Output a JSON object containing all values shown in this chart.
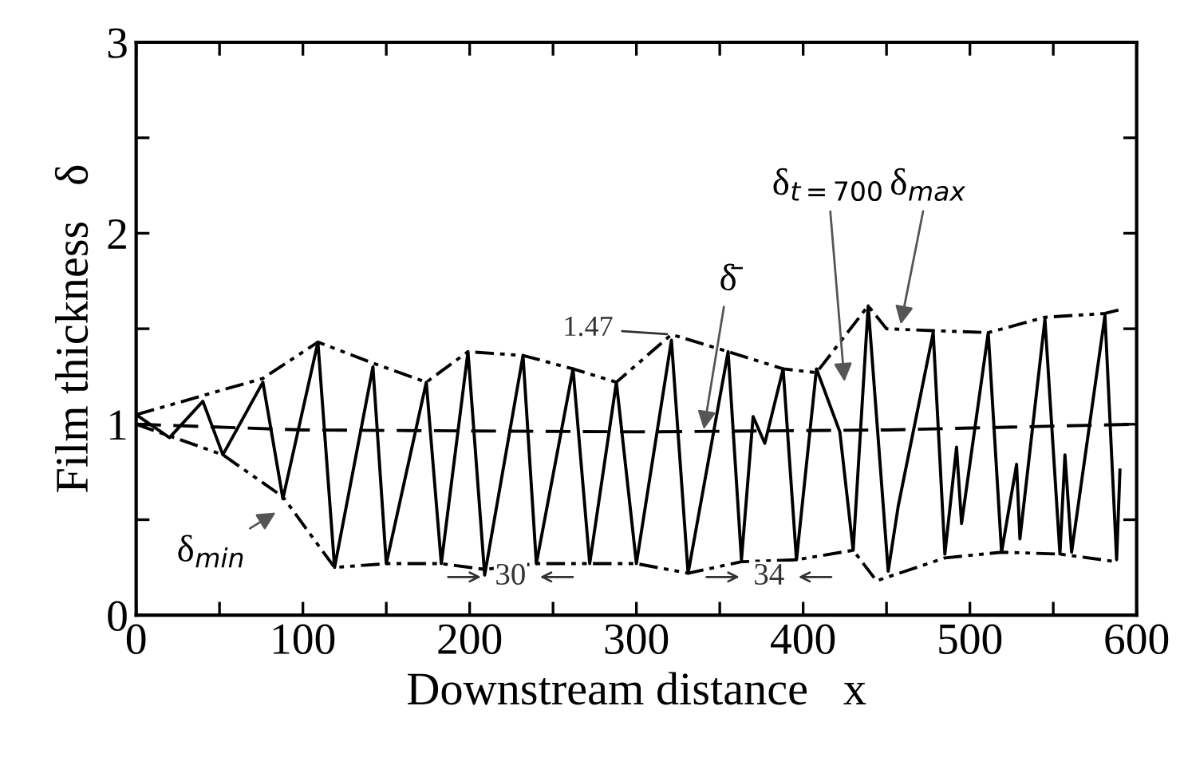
{
  "chart_data": {
    "type": "line",
    "xlabel": "Downstream distance   x",
    "ylabel": "Film thickness   δ",
    "xlim": [
      0,
      600
    ],
    "ylim": [
      0,
      3
    ],
    "xticks": [
      0,
      {
        "value": 50,
        "label": null
      },
      100,
      {
        "value": 150,
        "label": null
      },
      200,
      {
        "value": 250,
        "label": null
      },
      300,
      {
        "value": 350,
        "label": null
      },
      400,
      {
        "value": 450,
        "label": null
      },
      500,
      {
        "value": 550,
        "label": null
      },
      600
    ],
    "yticks": [
      0,
      {
        "value": 0.5,
        "label": null
      },
      1,
      {
        "value": 1.5,
        "label": null
      },
      2,
      {
        "value": 2.5,
        "label": null
      },
      3
    ],
    "grid": false,
    "legend": false,
    "marker": "none",
    "series": [
      {
        "name": "δ$_{t=700}$",
        "color": "#000000",
        "line_style": "solid",
        "x": [
          0,
          20,
          40,
          52,
          76,
          88,
          109,
          119,
          142,
          150,
          174,
          183,
          199,
          209,
          232,
          240,
          262,
          272,
          288,
          300,
          321,
          331,
          355,
          363,
          370,
          377,
          388,
          396,
          408,
          422,
          430,
          439,
          451,
          457,
          478,
          485,
          492,
          495,
          511,
          519,
          528,
          530,
          545,
          554,
          557,
          561,
          581,
          588,
          590
        ],
        "values": [
          1.05,
          0.93,
          1.12,
          0.84,
          1.22,
          0.61,
          1.43,
          0.25,
          1.3,
          0.27,
          1.22,
          0.27,
          1.38,
          0.21,
          1.36,
          0.27,
          1.29,
          0.27,
          1.22,
          0.27,
          1.44,
          0.22,
          1.38,
          0.29,
          1.04,
          0.9,
          1.29,
          0.29,
          1.29,
          0.96,
          0.34,
          1.62,
          0.23,
          0.57,
          1.48,
          0.32,
          0.88,
          0.48,
          1.48,
          0.33,
          0.79,
          0.4,
          1.55,
          0.32,
          0.84,
          0.33,
          1.57,
          0.29,
          0.76
        ]
      },
      {
        "name": "δ$_{max}$",
        "color": "#000000",
        "line_style": "dashdot",
        "x": [
          0,
          40,
          76,
          109,
          142,
          174,
          199,
          232,
          262,
          288,
          321,
          355,
          388,
          408,
          439,
          450,
          478,
          511,
          545,
          581,
          590
        ],
        "values": [
          1.05,
          1.15,
          1.24,
          1.43,
          1.32,
          1.22,
          1.38,
          1.36,
          1.29,
          1.22,
          1.47,
          1.38,
          1.29,
          1.27,
          1.62,
          1.5,
          1.49,
          1.48,
          1.56,
          1.58,
          1.6
        ]
      },
      {
        "name": "δ$_{min}$",
        "color": "#000000",
        "line_style": "dashdot",
        "x": [
          0,
          52,
          88,
          119,
          150,
          183,
          209,
          240,
          272,
          300,
          331,
          363,
          396,
          430,
          444,
          485,
          519,
          554,
          588
        ],
        "values": [
          1.0,
          0.84,
          0.62,
          0.25,
          0.27,
          0.27,
          0.24,
          0.27,
          0.27,
          0.27,
          0.22,
          0.28,
          0.29,
          0.34,
          0.18,
          0.3,
          0.33,
          0.32,
          0.28
        ]
      },
      {
        "name": "δ̄",
        "color": "#000000",
        "line_style": "dashed",
        "x": [
          0,
          100,
          300,
          450,
          600
        ],
        "values": [
          1.0,
          0.97,
          0.96,
          0.97,
          1.0
        ]
      }
    ],
    "annotations": [
      {
        "text": "1.47",
        "x": 321,
        "y": 1.47
      },
      {
        "text": "30",
        "x": 224.5,
        "y": 0.2
      },
      {
        "text": "34",
        "x": 379.5,
        "y": 0.2
      }
    ]
  }
}
